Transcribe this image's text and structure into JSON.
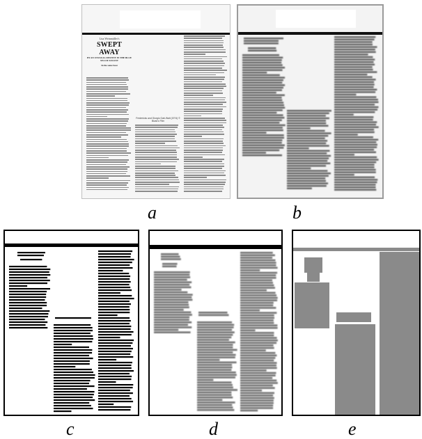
{
  "figure": {
    "panels": [
      {
        "id": "a",
        "caption": "a"
      },
      {
        "id": "b",
        "caption": "b"
      },
      {
        "id": "c",
        "caption": "c"
      },
      {
        "id": "d",
        "caption": "d"
      },
      {
        "id": "e",
        "caption": "e"
      }
    ]
  },
  "article": {
    "kicker": "Lisa Weinmüller's",
    "headline": "SWEPT AWAY",
    "subtitle": "BY AN UNUSUAL DESTINY IN THE BLUE SEA OF AUGUST",
    "byline": "In the same boat",
    "photo_caption": "Fredericks and Giorgio Gab-Wall (1974) © Bizarro Film"
  },
  "colors": {
    "scan_text": "#8a8a8a",
    "binary_text": "#000000",
    "blur_text": "#6f6f6f",
    "segment_fill": "#8a8a8a"
  }
}
